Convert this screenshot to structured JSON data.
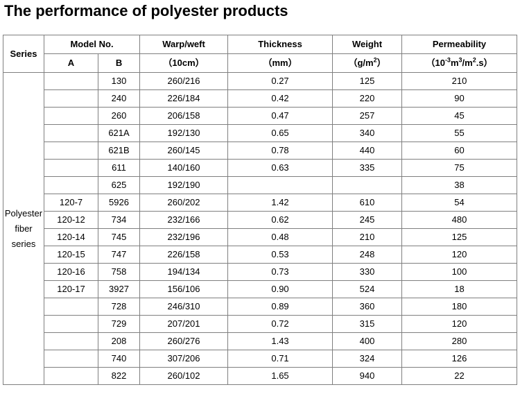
{
  "title": "The performance of polyester products",
  "headers": {
    "series": "Series",
    "model_no": "Model No.",
    "a": "A",
    "b": "B",
    "warp_weft": "Warp/weft",
    "warp_weft_unit": "（10cm）",
    "thickness": "Thickness",
    "thickness_unit": "（mm）",
    "weight": "Weight",
    "weight_unit_pre": "（g/m",
    "weight_unit_sup": "2",
    "weight_unit_post": "）",
    "permeability": "Permeability",
    "perm_unit_1": "（10",
    "perm_unit_sup1": "-3",
    "perm_unit_2": "m",
    "perm_unit_sup2": "3",
    "perm_unit_3": "/m",
    "perm_unit_sup3": "2",
    "perm_unit_4": ".s）"
  },
  "series_label": [
    "Polyester",
    "fiber",
    "series"
  ],
  "rows": [
    {
      "a": "",
      "b": "130",
      "warp_weft": "260/216",
      "thickness": "0.27",
      "weight": "125",
      "permeability": "210"
    },
    {
      "a": "",
      "b": "240",
      "warp_weft": "226/184",
      "thickness": "0.42",
      "weight": "220",
      "permeability": "90"
    },
    {
      "a": "",
      "b": "260",
      "warp_weft": "206/158",
      "thickness": "0.47",
      "weight": "257",
      "permeability": "45"
    },
    {
      "a": "",
      "b": "621A",
      "warp_weft": "192/130",
      "thickness": "0.65",
      "weight": "340",
      "permeability": "55"
    },
    {
      "a": "",
      "b": "621B",
      "warp_weft": "260/145",
      "thickness": "0.78",
      "weight": "440",
      "permeability": "60"
    },
    {
      "a": "",
      "b": "611",
      "warp_weft": "140/160",
      "thickness": "0.63",
      "weight": "335",
      "permeability": "75"
    },
    {
      "a": "",
      "b": "625",
      "warp_weft": "192/190",
      "thickness": "",
      "weight": "",
      "permeability": "38"
    },
    {
      "a": "120-7",
      "b": "5926",
      "warp_weft": "260/202",
      "thickness": "1.42",
      "weight": "610",
      "permeability": "54"
    },
    {
      "a": "120-12",
      "b": "734",
      "warp_weft": "232/166",
      "thickness": "0.62",
      "weight": "245",
      "permeability": "480"
    },
    {
      "a": "120-14",
      "b": "745",
      "warp_weft": "232/196",
      "thickness": "0.48",
      "weight": "210",
      "permeability": "125"
    },
    {
      "a": "120-15",
      "b": "747",
      "warp_weft": "226/158",
      "thickness": "0.53",
      "weight": "248",
      "permeability": "120"
    },
    {
      "a": "120-16",
      "b": "758",
      "warp_weft": "194/134",
      "thickness": "0.73",
      "weight": "330",
      "permeability": "100"
    },
    {
      "a": "120-17",
      "b": "3927",
      "warp_weft": "156/106",
      "thickness": "0.90",
      "weight": "524",
      "permeability": "18"
    },
    {
      "a": "",
      "b": "728",
      "warp_weft": "246/310",
      "thickness": "0.89",
      "weight": "360",
      "permeability": "180"
    },
    {
      "a": "",
      "b": "729",
      "warp_weft": "207/201",
      "thickness": "0.72",
      "weight": "315",
      "permeability": "120"
    },
    {
      "a": "",
      "b": "208",
      "warp_weft": "260/276",
      "thickness": "1.43",
      "weight": "400",
      "permeability": "280"
    },
    {
      "a": "",
      "b": "740",
      "warp_weft": "307/206",
      "thickness": "0.71",
      "weight": "324",
      "permeability": "126"
    },
    {
      "a": "",
      "b": "822",
      "warp_weft": "260/102",
      "thickness": "1.65",
      "weight": "940",
      "permeability": "22"
    }
  ]
}
